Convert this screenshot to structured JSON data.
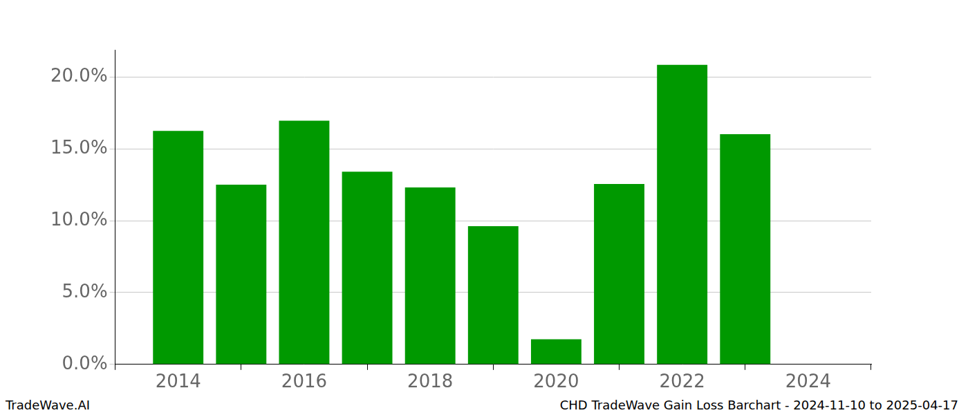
{
  "chart_data": {
    "type": "bar",
    "title": "CHD TradeWave Gain Loss Barchart - 2024-11-10 to 2025-04-17",
    "source": "TradeWave.AI",
    "x": [
      2014,
      2015,
      2016,
      2017,
      2018,
      2019,
      2020,
      2021,
      2022,
      2023
    ],
    "values": [
      16.26,
      12.51,
      16.97,
      13.41,
      12.32,
      9.62,
      1.75,
      12.56,
      20.85,
      16.02
    ],
    "color": "#009900",
    "xlim": [
      2013,
      2025
    ],
    "xticks": [
      2014,
      2016,
      2018,
      2020,
      2022,
      2024
    ],
    "ylim": [
      0,
      21.9
    ],
    "yticks": [
      {
        "value": 0,
        "label": "0.0%"
      },
      {
        "value": 5,
        "label": "5.0%"
      },
      {
        "value": 10,
        "label": "10.0%"
      },
      {
        "value": 15,
        "label": "15.0%"
      },
      {
        "value": 20,
        "label": "20.0%"
      }
    ],
    "grid": true
  }
}
